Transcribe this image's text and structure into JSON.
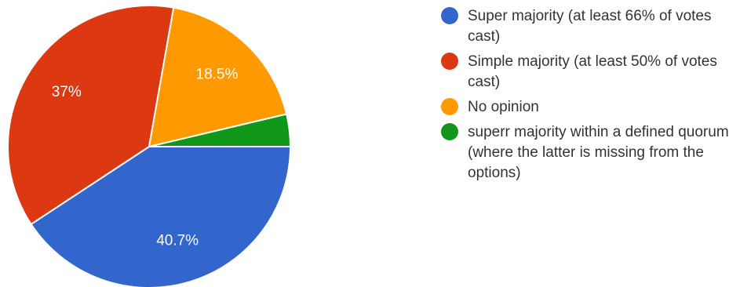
{
  "chart_data": {
    "type": "pie",
    "categories": [
      "Super majority (at least 66% of votes cast)",
      "Simple majority (at least 50% of votes cast)",
      "No opinion",
      "superr majority within a defined quorum (where the latter is missing from the options)"
    ],
    "values": [
      40.7,
      37,
      18.5,
      3.7
    ],
    "data_labels": [
      "40.7%",
      "37%",
      "18.5%",
      ""
    ],
    "colors": [
      "#3366cc",
      "#dc3912",
      "#ff9900",
      "#109618"
    ],
    "title": "",
    "legend_position": "right"
  }
}
